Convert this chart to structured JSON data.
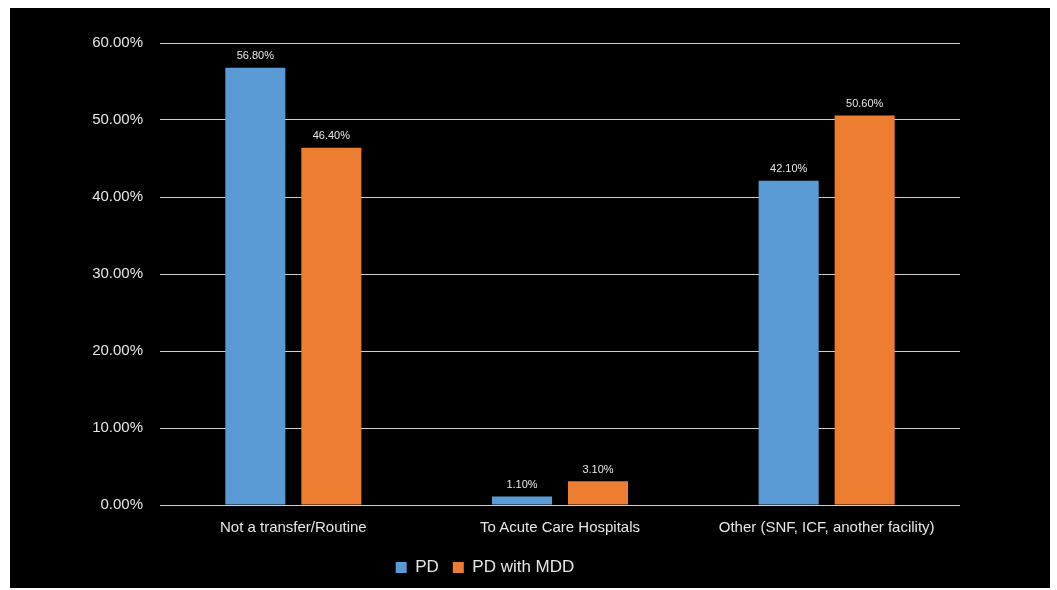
{
  "chart_data": {
    "type": "bar",
    "categories": [
      "Not a transfer/Routine",
      "To Acute Care Hospitals",
      "Other (SNF, ICF, another facility)"
    ],
    "series": [
      {
        "name": "PD",
        "color": "#5b9bd5",
        "values": [
          56.8,
          1.1,
          42.1
        ],
        "value_labels": [
          "56.80%",
          "1.10%",
          "42.10%"
        ]
      },
      {
        "name": "PD with MDD",
        "color": "#ed7d31",
        "values": [
          46.4,
          3.1,
          50.6
        ],
        "value_labels": [
          "46.40%",
          "3.10%",
          "50.60%"
        ]
      }
    ],
    "ylim": [
      0,
      60
    ],
    "yticks": [
      {
        "value": 0,
        "label": "0.00%"
      },
      {
        "value": 10,
        "label": "10.00%"
      },
      {
        "value": 20,
        "label": "20.00%"
      },
      {
        "value": 30,
        "label": "30.00%"
      },
      {
        "value": 40,
        "label": "40.00%"
      },
      {
        "value": 50,
        "label": "50.00%"
      },
      {
        "value": 60,
        "label": "60.00%"
      }
    ],
    "grid": "y",
    "legend": "bottom"
  }
}
